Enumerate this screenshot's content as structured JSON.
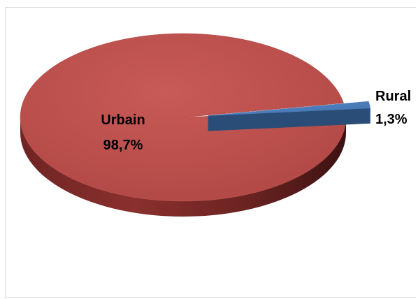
{
  "chart_data": {
    "type": "pie",
    "style": "3d-exploded",
    "title": "",
    "legend": "none",
    "slices": [
      {
        "label": "Urbain",
        "value": 98.7,
        "display": "98,7%",
        "color": "#C0504D"
      },
      {
        "label": "Rural",
        "value": 1.3,
        "display": "1,3%",
        "color": "#4F81BD"
      }
    ]
  }
}
